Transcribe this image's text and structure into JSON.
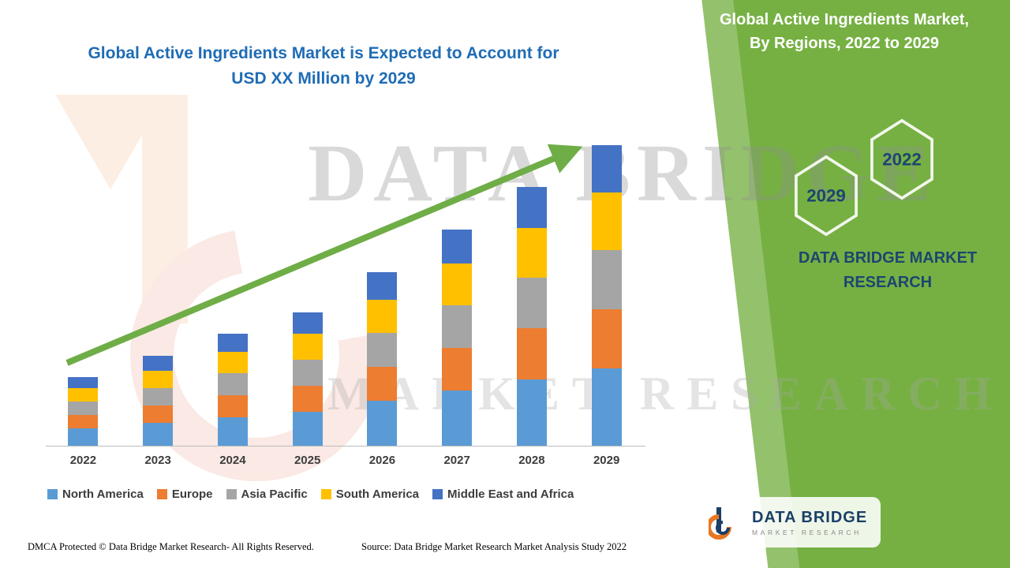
{
  "main_title": {
    "line1": "Global Active Ingredients Market is Expected to Account for",
    "line2": "USD XX Million by 2029"
  },
  "panel": {
    "title_line1": "Global Active Ingredients Market,",
    "title_line2": "By Regions, 2022 to 2029",
    "brand_line1": "DATA BRIDGE MARKET",
    "brand_line2": "RESEARCH",
    "hexagons": [
      {
        "label": "2029"
      },
      {
        "label": "2022"
      }
    ],
    "accent_green": "#76b043",
    "brand_blue": "#1c4670"
  },
  "chart_data": {
    "type": "bar",
    "stacked": true,
    "title": "Global Active Ingredients Market is Expected to Account for USD XX Million by 2029",
    "xlabel": "",
    "ylabel": "",
    "units": "USD Million (values undisclosed, shown as XX)",
    "grid": false,
    "legend_position": "bottom",
    "trend_arrow": true,
    "categories": [
      "2022",
      "2023",
      "2024",
      "2025",
      "2026",
      "2027",
      "2028",
      "2029"
    ],
    "series": [
      {
        "name": "North America",
        "color": "#5b9bd5",
        "values": [
          22,
          29,
          36,
          43,
          57,
          70,
          84,
          98
        ]
      },
      {
        "name": "Europe",
        "color": "#ed7d31",
        "values": [
          17,
          22,
          28,
          33,
          43,
          54,
          65,
          75
        ]
      },
      {
        "name": "Asia Pacific",
        "color": "#a5a5a5",
        "values": [
          17,
          22,
          28,
          33,
          43,
          54,
          64,
          75
        ]
      },
      {
        "name": "South America",
        "color": "#ffc000",
        "values": [
          17,
          22,
          27,
          33,
          42,
          53,
          63,
          73
        ]
      },
      {
        "name": "Middle East and Africa",
        "color": "#4472c4",
        "values": [
          14,
          19,
          23,
          27,
          35,
          43,
          52,
          60
        ]
      }
    ],
    "totals": [
      87,
      114,
      142,
      169,
      220,
      274,
      328,
      381
    ]
  },
  "watermark": {
    "line1": "DATA BRIDGE",
    "line2": "MARKET RESEARCH"
  },
  "footer": {
    "dmca": "DMCA Protected © Data Bridge Market Research- All Rights Reserved.",
    "source": "Source: Data Bridge Market Research Market Analysis Study 2022"
  },
  "logo": {
    "line1": "DATA BRIDGE",
    "line2": "MARKET RESEARCH"
  }
}
